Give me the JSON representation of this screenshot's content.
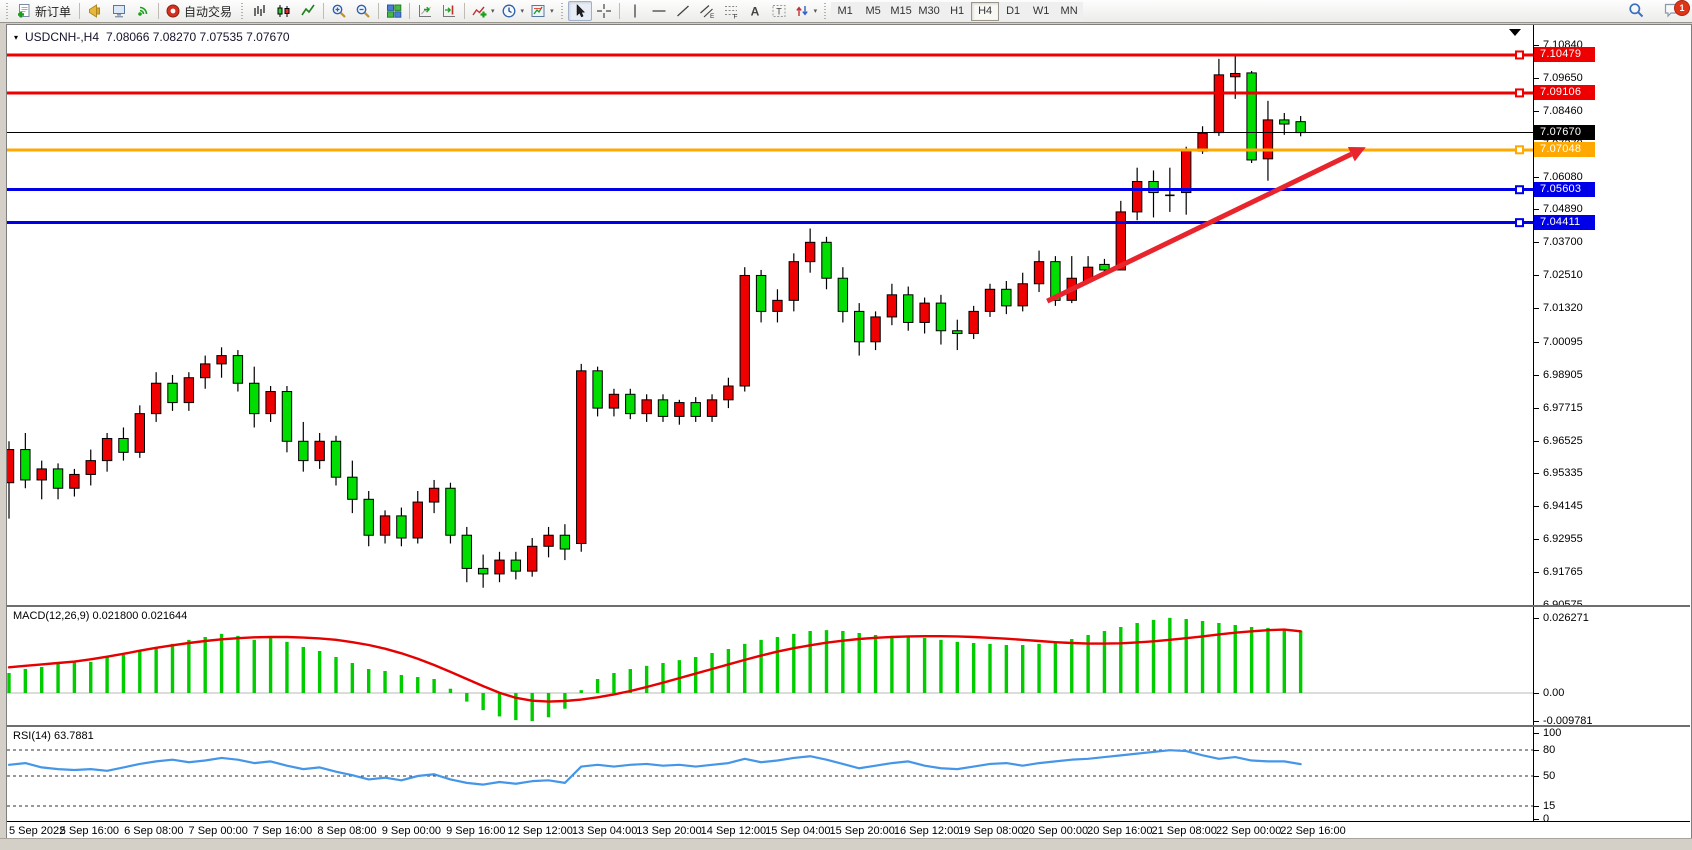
{
  "toolbar": {
    "items": [
      {
        "handle": true
      },
      {
        "name": "new-order-button",
        "icon": "doc-plus",
        "label": "新订单"
      },
      {
        "sep": true
      },
      {
        "name": "alerts-button",
        "icon": "horn"
      },
      {
        "name": "market-watch-button",
        "icon": "monitor"
      },
      {
        "name": "signals-button",
        "icon": "signal"
      },
      {
        "sep": true
      },
      {
        "name": "autotrading-button",
        "icon": "autotrade",
        "label": "自动交易"
      },
      {
        "handle": true
      },
      {
        "name": "bar-chart-button",
        "icon": "bars"
      },
      {
        "name": "candlestick-chart-button",
        "icon": "candles"
      },
      {
        "name": "line-chart-button",
        "icon": "linechart"
      },
      {
        "sep": true
      },
      {
        "name": "zoom-in-button",
        "icon": "zoom-in"
      },
      {
        "name": "zoom-out-button",
        "icon": "zoom-out"
      },
      {
        "sep": true
      },
      {
        "name": "tile-windows-button",
        "icon": "tiles"
      },
      {
        "sep": true
      },
      {
        "name": "auto-scroll-button",
        "icon": "autoscroll"
      },
      {
        "name": "chart-shift-button",
        "icon": "chartshift"
      },
      {
        "sep": true
      },
      {
        "name": "indicators-button",
        "icon": "indicator-add",
        "dropdown": true
      },
      {
        "name": "periods-button",
        "icon": "clock",
        "dropdown": true
      },
      {
        "name": "templates-button",
        "icon": "template",
        "dropdown": true
      },
      {
        "handle": true
      },
      {
        "name": "cursor-button",
        "icon": "cursor",
        "active": true
      },
      {
        "name": "crosshair-button",
        "icon": "crosshair"
      },
      {
        "sep": true
      },
      {
        "name": "vertical-line-button",
        "icon": "vline"
      },
      {
        "name": "horizontal-line-button",
        "icon": "hline"
      },
      {
        "name": "trendline-button",
        "icon": "trendline"
      },
      {
        "name": "channel-button",
        "icon": "channel"
      },
      {
        "name": "fibonacci-button",
        "icon": "fibo"
      },
      {
        "name": "text-button",
        "icon": "text-a"
      },
      {
        "name": "text-label-button",
        "icon": "text-label"
      },
      {
        "name": "arrows-button",
        "icon": "arrows",
        "dropdown": true
      },
      {
        "handle": true
      },
      {
        "name": "tf-m1",
        "tf": "M1"
      },
      {
        "name": "tf-m5",
        "tf": "M5"
      },
      {
        "name": "tf-m15",
        "tf": "M15"
      },
      {
        "name": "tf-m30",
        "tf": "M30"
      },
      {
        "name": "tf-h1",
        "tf": "H1"
      },
      {
        "name": "tf-h4",
        "tf": "H4",
        "active": true
      },
      {
        "name": "tf-d1",
        "tf": "D1"
      },
      {
        "name": "tf-w1",
        "tf": "W1"
      },
      {
        "name": "tf-mn",
        "tf": "MN"
      }
    ],
    "right": [
      {
        "name": "search-button",
        "icon": "search"
      },
      {
        "name": "notifications-button",
        "icon": "chat",
        "badge": "1"
      }
    ]
  },
  "window": {
    "title": {
      "symbol": "USDCNH-,H4",
      "ohlc": "7.08066 7.08270 7.07535 7.07670"
    },
    "macd_title": "MACD(12,26,9) 0.021800 0.021644",
    "rsi_title": "RSI(14) 63.7881"
  },
  "colors": {
    "bull": "#ee0000",
    "bear": "#00dd00",
    "wick": "#000000",
    "line_red": "#ee0000",
    "line_blue": "#0000e8",
    "line_orange": "#ffa800",
    "price_line": "#000000",
    "macd_hist": "#00cc00",
    "macd_signal": "#e60000",
    "rsi_line": "#4596e8",
    "arrow": "#e8242c",
    "axis_text": "#000000"
  },
  "chart_data": {
    "type": "candlestick",
    "symbol": "USDCNH-",
    "timeframe": "H4",
    "current_ohlc": {
      "open": 7.08066,
      "high": 7.0827,
      "low": 7.07535,
      "close": 7.0767
    },
    "price_range": [
      6.90575,
      7.1084
    ],
    "candles": [
      [
        6.95,
        6.965,
        6.937,
        6.962
      ],
      [
        6.962,
        6.968,
        6.948,
        6.951
      ],
      [
        6.951,
        6.958,
        6.944,
        6.955
      ],
      [
        6.955,
        6.957,
        6.944,
        6.948
      ],
      [
        6.948,
        6.955,
        6.945,
        6.953
      ],
      [
        6.953,
        6.962,
        6.949,
        6.958
      ],
      [
        6.958,
        6.968,
        6.954,
        6.966
      ],
      [
        6.966,
        6.97,
        6.958,
        6.961
      ],
      [
        6.961,
        6.978,
        6.959,
        6.975
      ],
      [
        6.975,
        6.99,
        6.972,
        6.986
      ],
      [
        6.986,
        6.989,
        6.976,
        6.979
      ],
      [
        6.979,
        6.99,
        6.976,
        6.988
      ],
      [
        6.988,
        6.996,
        6.984,
        6.993
      ],
      [
        6.993,
        6.999,
        6.988,
        6.996
      ],
      [
        6.996,
        6.998,
        6.983,
        6.986
      ],
      [
        6.986,
        6.992,
        6.97,
        6.975
      ],
      [
        6.975,
        6.985,
        6.972,
        6.983
      ],
      [
        6.983,
        6.985,
        6.961,
        6.965
      ],
      [
        6.965,
        6.972,
        6.954,
        6.958
      ],
      [
        6.958,
        6.968,
        6.955,
        6.965
      ],
      [
        6.965,
        6.967,
        6.949,
        6.952
      ],
      [
        6.952,
        6.958,
        6.939,
        6.944
      ],
      [
        6.944,
        6.947,
        6.927,
        6.931
      ],
      [
        6.931,
        6.94,
        6.928,
        6.938
      ],
      [
        6.938,
        6.941,
        6.927,
        6.93
      ],
      [
        6.93,
        6.947,
        6.928,
        6.943
      ],
      [
        6.943,
        6.951,
        6.939,
        6.948
      ],
      [
        6.948,
        6.95,
        6.928,
        6.931
      ],
      [
        6.931,
        6.934,
        6.914,
        6.919
      ],
      [
        6.919,
        6.924,
        6.912,
        6.917
      ],
      [
        6.917,
        6.925,
        6.914,
        6.922
      ],
      [
        6.922,
        6.925,
        6.915,
        6.918
      ],
      [
        6.918,
        6.93,
        6.916,
        6.927
      ],
      [
        6.927,
        6.934,
        6.923,
        6.931
      ],
      [
        6.931,
        6.935,
        6.922,
        6.926
      ],
      [
        6.928,
        6.993,
        6.925,
        6.9905
      ],
      [
        6.9905,
        6.992,
        6.974,
        6.977
      ],
      [
        6.977,
        6.984,
        6.974,
        6.982
      ],
      [
        6.982,
        6.984,
        6.973,
        6.975
      ],
      [
        6.975,
        6.982,
        6.972,
        6.98
      ],
      [
        6.98,
        6.982,
        6.972,
        6.974
      ],
      [
        6.974,
        6.98,
        6.971,
        6.979
      ],
      [
        6.979,
        6.981,
        6.972,
        6.974
      ],
      [
        6.974,
        6.982,
        6.972,
        6.98
      ],
      [
        6.98,
        6.988,
        6.977,
        6.985
      ],
      [
        6.985,
        7.028,
        6.983,
        7.025
      ],
      [
        7.025,
        7.027,
        7.008,
        7.012
      ],
      [
        7.012,
        7.02,
        7.008,
        7.016
      ],
      [
        7.016,
        7.033,
        7.012,
        7.03
      ],
      [
        7.03,
        7.042,
        7.026,
        7.037
      ],
      [
        7.037,
        7.039,
        7.02,
        7.024
      ],
      [
        7.024,
        7.028,
        7.008,
        7.012
      ],
      [
        7.012,
        7.015,
        6.996,
        7.001
      ],
      [
        7.001,
        7.012,
        6.998,
        7.01
      ],
      [
        7.01,
        7.022,
        7.007,
        7.018
      ],
      [
        7.018,
        7.021,
        7.005,
        7.008
      ],
      [
        7.008,
        7.017,
        7.004,
        7.015
      ],
      [
        7.015,
        7.018,
        7.0,
        7.005
      ],
      [
        7.005,
        7.009,
        6.998,
        7.004
      ],
      [
        7.004,
        7.014,
        7.002,
        7.012
      ],
      [
        7.012,
        7.022,
        7.01,
        7.02
      ],
      [
        7.02,
        7.023,
        7.011,
        7.014
      ],
      [
        7.014,
        7.026,
        7.012,
        7.022
      ],
      [
        7.022,
        7.034,
        7.019,
        7.03
      ],
      [
        7.03,
        7.032,
        7.014,
        7.016
      ],
      [
        7.016,
        7.032,
        7.015,
        7.024
      ],
      [
        7.023,
        7.032,
        7.022,
        7.028
      ],
      [
        7.029,
        7.031,
        7.026,
        7.027
      ],
      [
        7.027,
        7.052,
        7.027,
        7.048
      ],
      [
        7.048,
        7.064,
        7.045,
        7.059
      ],
      [
        7.059,
        7.063,
        7.046,
        7.055
      ],
      [
        7.054,
        7.064,
        7.048,
        7.054
      ],
      [
        7.055,
        7.0716,
        7.047,
        7.07
      ],
      [
        7.07,
        7.079,
        7.069,
        7.0765
      ],
      [
        7.0767,
        7.1034,
        7.0755,
        7.0976
      ],
      [
        7.0969,
        7.1044,
        7.0889,
        7.0981
      ],
      [
        7.0983,
        7.099,
        7.0657,
        7.0668
      ],
      [
        7.0672,
        7.0882,
        7.0593,
        7.0813
      ],
      [
        7.0813,
        7.0838,
        7.0759,
        7.0798
      ],
      [
        7.08066,
        7.0827,
        7.07535,
        7.0767
      ]
    ],
    "hlines": [
      {
        "price": 7.10479,
        "color": "red",
        "label": "7.10479",
        "width": 3
      },
      {
        "price": 7.09106,
        "color": "red",
        "label": "7.09106",
        "width": 3
      },
      {
        "price": 7.0767,
        "color": "black",
        "label": "7.07670",
        "width": 1,
        "role": "current-price"
      },
      {
        "price": 7.07048,
        "color": "orange",
        "label": "7.07048",
        "width": 3
      },
      {
        "price": 7.05603,
        "color": "blue",
        "label": "7.05603",
        "width": 3
      },
      {
        "price": 7.04411,
        "color": "blue",
        "label": "7.04411",
        "width": 3
      }
    ],
    "price_ticks": [
      "7.10840",
      "7.09650",
      "7.08460",
      "7.07270",
      "7.06080",
      "7.04890",
      "7.03700",
      "7.02510",
      "7.01320",
      "7.00095",
      "6.98905",
      "6.97715",
      "6.96525",
      "6.95335",
      "6.94145",
      "6.92955",
      "6.91765",
      "6.90575"
    ],
    "time_labels": [
      "5 Sep 2022",
      "5 Sep 16:00",
      "6 Sep 08:00",
      "7 Sep 00:00",
      "7 Sep 16:00",
      "8 Sep 08:00",
      "9 Sep 00:00",
      "9 Sep 16:00",
      "12 Sep 12:00",
      "13 Sep 04:00",
      "13 Sep 20:00",
      "14 Sep 12:00",
      "15 Sep 04:00",
      "15 Sep 20:00",
      "16 Sep 12:00",
      "19 Sep 08:00",
      "20 Sep 00:00",
      "20 Sep 16:00",
      "21 Sep 08:00",
      "22 Sep 00:00",
      "22 Sep 16:00"
    ],
    "trend_arrow": {
      "from_bar": 63.5,
      "from_price": 7.0157,
      "to_bar": 82.1,
      "to_price": 7.0689
    },
    "macd": {
      "params": "12,26,9",
      "value": 0.0218,
      "signal_value": 0.021644,
      "axis_labels": [
        "0.026271",
        "0.00",
        "-0.009781"
      ],
      "axis_values": [
        0.026271,
        0,
        -0.009781
      ],
      "histogram": [
        0.007,
        0.0084,
        0.0091,
        0.0102,
        0.0112,
        0.0109,
        0.0126,
        0.0133,
        0.0147,
        0.0161,
        0.0172,
        0.0186,
        0.0196,
        0.0207,
        0.02,
        0.0186,
        0.0193,
        0.0179,
        0.0161,
        0.0147,
        0.0126,
        0.0105,
        0.0084,
        0.0077,
        0.0063,
        0.0056,
        0.0049,
        0.0015,
        -0.003,
        -0.006,
        -0.0082,
        -0.0095,
        -0.0098,
        -0.0085,
        -0.0055,
        0.001,
        0.0049,
        0.007,
        0.0084,
        0.0095,
        0.0105,
        0.0115,
        0.0126,
        0.014,
        0.0154,
        0.0172,
        0.0186,
        0.0196,
        0.0207,
        0.0217,
        0.022,
        0.0217,
        0.021,
        0.0203,
        0.02,
        0.0196,
        0.0193,
        0.0186,
        0.0179,
        0.0175,
        0.0172,
        0.0168,
        0.0168,
        0.0172,
        0.0179,
        0.0189,
        0.0203,
        0.0217,
        0.0231,
        0.0245,
        0.0256,
        0.0263,
        0.0259,
        0.0252,
        0.0245,
        0.0238,
        0.0231,
        0.0228,
        0.0224,
        0.0218
      ],
      "signal": [
        0.009,
        0.0095,
        0.01,
        0.0105,
        0.011,
        0.0118,
        0.0127,
        0.0137,
        0.0148,
        0.0158,
        0.0167,
        0.0175,
        0.0182,
        0.0188,
        0.0192,
        0.0195,
        0.0196,
        0.0196,
        0.0194,
        0.0191,
        0.0186,
        0.0178,
        0.0168,
        0.0155,
        0.0139,
        0.012,
        0.0098,
        0.0074,
        0.0049,
        0.0024,
        0.0001,
        -0.0017,
        -0.0027,
        -0.003,
        -0.0028,
        -0.0023,
        -0.0015,
        -0.0005,
        0.0007,
        0.0021,
        0.0036,
        0.0052,
        0.0068,
        0.0084,
        0.01,
        0.0116,
        0.0131,
        0.0145,
        0.0157,
        0.0167,
        0.0176,
        0.0183,
        0.0189,
        0.0193,
        0.0196,
        0.0198,
        0.0199,
        0.0199,
        0.0198,
        0.0196,
        0.0193,
        0.019,
        0.0186,
        0.0182,
        0.0178,
        0.0175,
        0.0173,
        0.0173,
        0.0174,
        0.0177,
        0.0181,
        0.0186,
        0.0192,
        0.0198,
        0.0205,
        0.0211,
        0.0216,
        0.022,
        0.0222,
        0.0216
      ]
    },
    "rsi": {
      "period": 14,
      "value": 63.7881,
      "axis_labels": [
        "100",
        "80",
        "50",
        "15",
        "0"
      ],
      "axis_values": [
        100,
        80,
        50,
        15,
        0
      ],
      "dashed_levels": [
        80,
        50,
        15
      ],
      "values": [
        63,
        65,
        60,
        58,
        57,
        58,
        56,
        60,
        64,
        67,
        69,
        66,
        68,
        71,
        69,
        65,
        67,
        62,
        58,
        60,
        55,
        51,
        46,
        48,
        45,
        50,
        52,
        46,
        42,
        40,
        43,
        41,
        44,
        45,
        42,
        61,
        63,
        61,
        63,
        64,
        62,
        63,
        61,
        63,
        65,
        70,
        66,
        68,
        71,
        73,
        69,
        64,
        59,
        62,
        65,
        67,
        62,
        59,
        58,
        61,
        64,
        65,
        62,
        65,
        67,
        69,
        70,
        72,
        74,
        76,
        78,
        80,
        79,
        74,
        70,
        72,
        68,
        67,
        67,
        63.8
      ]
    }
  }
}
